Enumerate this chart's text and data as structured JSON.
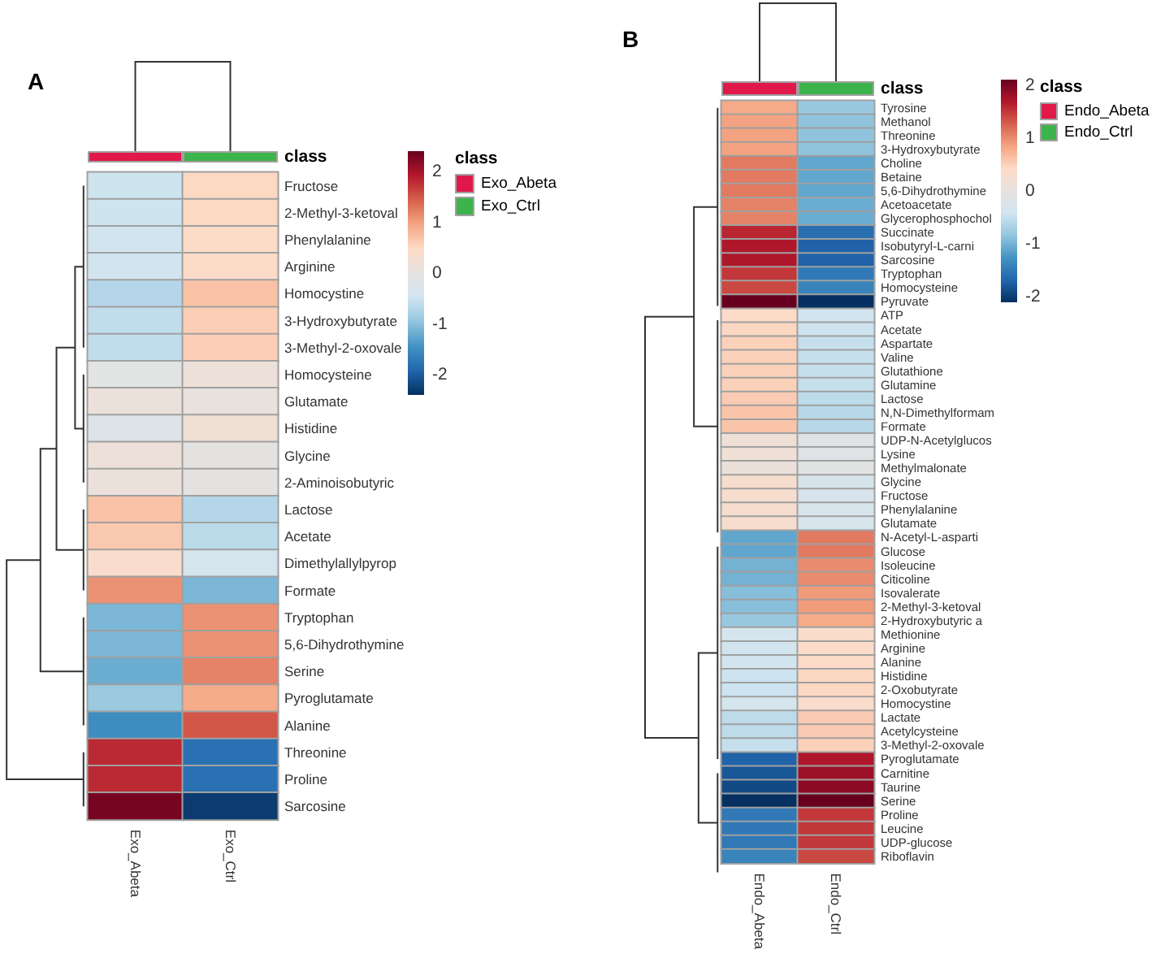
{
  "chart_data": [
    {
      "type": "heatmap",
      "title": "A",
      "legend_title": "class",
      "categories": [
        "Exo_Abeta",
        "Exo_Ctrl"
      ],
      "y_categories": [
        "Fructose",
        "2-Methyl-3-ketoval",
        "Phenylalanine",
        "Arginine",
        "Homocystine",
        "3-Hydroxybutyrate",
        "3-Methyl-2-oxovale",
        "Homocysteine",
        "Glutamate",
        "Histidine",
        "Glycine",
        "2-Aminoisobutyric",
        "Lactose",
        "Acetate",
        "Dimethylallylpyrop",
        "Formate",
        "Tryptophan",
        "5,6-Dihydrothymine",
        "Serine",
        "Pyroglutamate",
        "Alanine",
        "Threonine",
        "Proline",
        "Sarcosine"
      ],
      "cells": [
        [
          -0.5,
          0.5
        ],
        [
          -0.5,
          0.5
        ],
        [
          -0.45,
          0.45
        ],
        [
          -0.45,
          0.45
        ],
        [
          -0.7,
          0.7
        ],
        [
          -0.6,
          0.6
        ],
        [
          -0.6,
          0.6
        ],
        [
          -0.1,
          0.15
        ],
        [
          0.1,
          0.05
        ],
        [
          -0.2,
          0.2
        ],
        [
          0.15,
          -0.05
        ],
        [
          0.1,
          -0.05
        ],
        [
          0.7,
          -0.7
        ],
        [
          0.65,
          -0.65
        ],
        [
          0.4,
          -0.4
        ],
        [
          1.1,
          -1.1
        ],
        [
          -1.1,
          1.1
        ],
        [
          -1.1,
          1.1
        ],
        [
          -1.2,
          1.2
        ],
        [
          -0.9,
          0.9
        ],
        [
          -1.5,
          1.5
        ],
        [
          1.8,
          -1.8
        ],
        [
          1.8,
          -1.8
        ],
        [
          2.3,
          -2.3
        ]
      ],
      "clim": [
        -2.4,
        2.4
      ],
      "cticks": [
        -2,
        -1,
        0,
        1,
        2
      ]
    },
    {
      "type": "heatmap",
      "title": "B",
      "legend_title": "class",
      "categories": [
        "Endo_Abeta",
        "Endo_Ctrl"
      ],
      "y_categories": [
        "Tyrosine",
        "Methanol",
        "Threonine",
        "3-Hydroxybutyrate",
        "Choline",
        "Betaine",
        "5,6-Dihydrothymine",
        "Acetoacetate",
        "Glycerophosphochol",
        "Succinate",
        "Isobutyryl-L-carni",
        "Sarcosine",
        "Tryptophan",
        "Homocysteine",
        "Pyruvate",
        "ATP",
        "Acetate",
        "Aspartate",
        "Valine",
        "Glutathione",
        "Glutamine",
        "Lactose",
        "N,N-Dimethylformam",
        "Formate",
        "UDP-N-Acetylglucos",
        "Lysine",
        "Methylmalonate",
        "Glycine",
        "Fructose",
        "Phenylalanine",
        "Glutamate",
        "N-Acetyl-L-asparti",
        "Glucose",
        "Isoleucine",
        "Citicoline",
        "Isovalerate",
        "2-Methyl-3-ketoval",
        "2-Hydroxybutyric a",
        "Methionine",
        "Arginine",
        "Alanine",
        "Histidine",
        "2-Oxobutyrate",
        "Homocystine",
        "Lactate",
        "Acetylcysteine",
        "3-Methyl-2-oxovale",
        "Pyroglutamate",
        "Carnitine",
        "Taurine",
        "Serine",
        "Proline",
        "Leucine",
        "UDP-glucose",
        "Riboflavin"
      ],
      "cells": [
        [
          0.8,
          -0.8
        ],
        [
          0.85,
          -0.85
        ],
        [
          0.85,
          -0.85
        ],
        [
          0.85,
          -0.85
        ],
        [
          1.1,
          -1.1
        ],
        [
          1.1,
          -1.1
        ],
        [
          1.1,
          -1.1
        ],
        [
          1.05,
          -1.05
        ],
        [
          1.05,
          -1.05
        ],
        [
          1.6,
          -1.6
        ],
        [
          1.7,
          -1.7
        ],
        [
          1.7,
          -1.7
        ],
        [
          1.5,
          -1.5
        ],
        [
          1.4,
          -1.4
        ],
        [
          2.1,
          -2.1
        ],
        [
          0.4,
          -0.4
        ],
        [
          0.45,
          -0.45
        ],
        [
          0.5,
          -0.5
        ],
        [
          0.5,
          -0.5
        ],
        [
          0.5,
          -0.5
        ],
        [
          0.5,
          -0.5
        ],
        [
          0.55,
          -0.55
        ],
        [
          0.6,
          -0.6
        ],
        [
          0.6,
          -0.6
        ],
        [
          0.15,
          -0.15
        ],
        [
          0.15,
          -0.15
        ],
        [
          0.1,
          -0.1
        ],
        [
          0.3,
          -0.3
        ],
        [
          0.3,
          -0.3
        ],
        [
          0.3,
          -0.3
        ],
        [
          0.3,
          -0.3
        ],
        [
          -1.1,
          1.1
        ],
        [
          -1.1,
          1.1
        ],
        [
          -1.0,
          1.0
        ],
        [
          -1.0,
          1.0
        ],
        [
          -0.9,
          0.9
        ],
        [
          -0.9,
          0.9
        ],
        [
          -0.8,
          0.8
        ],
        [
          -0.35,
          0.35
        ],
        [
          -0.4,
          0.4
        ],
        [
          -0.4,
          0.4
        ],
        [
          -0.45,
          0.45
        ],
        [
          -0.45,
          0.45
        ],
        [
          -0.35,
          0.35
        ],
        [
          -0.55,
          0.55
        ],
        [
          -0.55,
          0.55
        ],
        [
          -0.5,
          0.5
        ],
        [
          -1.7,
          1.7
        ],
        [
          -1.8,
          1.8
        ],
        [
          -1.9,
          1.9
        ],
        [
          -2.1,
          2.1
        ],
        [
          -1.5,
          1.5
        ],
        [
          -1.5,
          1.5
        ],
        [
          -1.5,
          1.5
        ],
        [
          -1.4,
          1.4
        ]
      ],
      "clim": [
        -2.1,
        2.1
      ],
      "cticks": [
        -2,
        -1,
        0,
        1,
        2
      ]
    }
  ]
}
